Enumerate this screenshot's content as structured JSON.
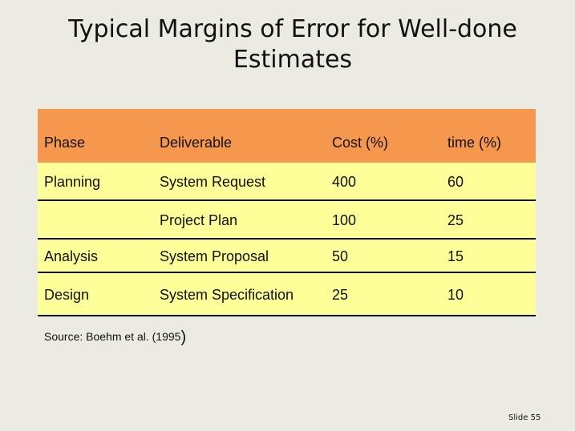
{
  "title": "Typical Margins of Error for Well-done Estimates",
  "table": {
    "headers": [
      "Phase",
      "Deliverable",
      "Cost (%)",
      "time (%)"
    ],
    "rows": [
      [
        "Planning",
        "System Request",
        "400",
        "60"
      ],
      [
        "",
        "Project Plan",
        "100",
        "25"
      ],
      [
        "Analysis",
        "System Proposal",
        "50",
        "15"
      ],
      [
        "Design",
        "System Specification",
        "25",
        "10"
      ]
    ]
  },
  "source": {
    "text": "Source: Boehm et al. (1995",
    "close_paren": ")"
  },
  "slide_number": "Slide 55"
}
